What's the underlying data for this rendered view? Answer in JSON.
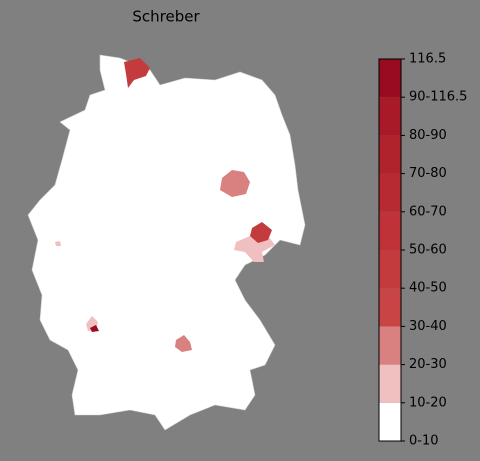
{
  "title": "Schreber",
  "colorbar": {
    "labels": [
      "0-10",
      "10-20",
      "20-30",
      "30-40",
      "40-50",
      "50-60",
      "60-70",
      "70-80",
      "80-90",
      "90-116.5",
      "116.5"
    ],
    "colors": [
      "#ffffff",
      "#f0c0c0",
      "#d98080",
      "#c94545",
      "#c43b3e",
      "#bf3238",
      "#b82a32",
      "#b0222c",
      "#a81a27",
      "#990b1f"
    ]
  }
}
